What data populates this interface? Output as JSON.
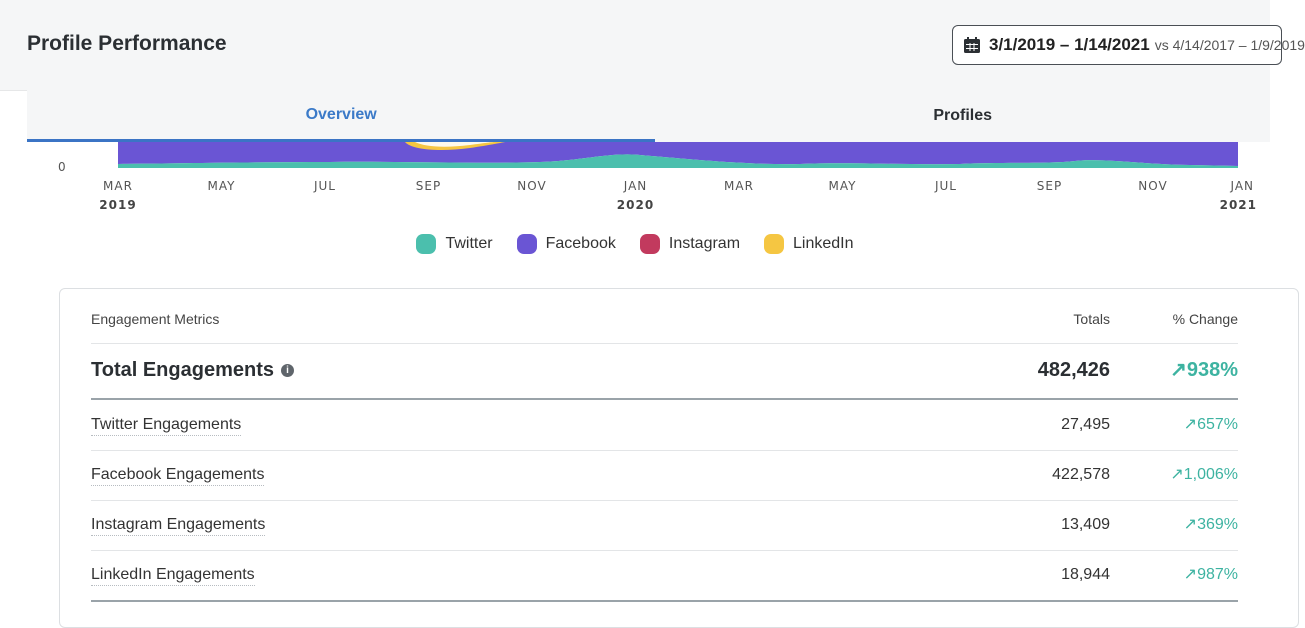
{
  "header": {
    "title": "Profile Performance",
    "date_range": "3/1/2019 – 1/14/2021",
    "compare_text": "vs 4/14/2017 – 1/9/2019",
    "calendar_icon": "calendar-icon"
  },
  "tabs": [
    {
      "label": "Overview",
      "active": true
    },
    {
      "label": "Profiles",
      "active": false
    }
  ],
  "chart_data": {
    "type": "area",
    "y_ticks": [
      "0"
    ],
    "x_ticks": [
      {
        "month": "MAR",
        "year": "2019"
      },
      {
        "month": "MAY",
        "year": ""
      },
      {
        "month": "JUL",
        "year": ""
      },
      {
        "month": "SEP",
        "year": ""
      },
      {
        "month": "NOV",
        "year": ""
      },
      {
        "month": "JAN",
        "year": "2020"
      },
      {
        "month": "MAR",
        "year": ""
      },
      {
        "month": "MAY",
        "year": ""
      },
      {
        "month": "JUL",
        "year": ""
      },
      {
        "month": "SEP",
        "year": ""
      },
      {
        "month": "NOV",
        "year": ""
      },
      {
        "month": "JAN",
        "year": "2021"
      }
    ],
    "legend": [
      {
        "name": "Twitter",
        "color": "#4bbfad"
      },
      {
        "name": "Facebook",
        "color": "#6a55d4"
      },
      {
        "name": "Instagram",
        "color": "#c23a5e"
      },
      {
        "name": "LinkedIn",
        "color": "#f5c642"
      }
    ],
    "stacked": true
  },
  "metrics": {
    "header": {
      "label": "Engagement Metrics",
      "totals": "Totals",
      "change": "% Change"
    },
    "total": {
      "label": "Total Engagements",
      "value": "482,426",
      "change": "938%"
    },
    "rows": [
      {
        "label": "Twitter Engagements",
        "value": "27,495",
        "change": "657%"
      },
      {
        "label": "Facebook Engagements",
        "value": "422,578",
        "change": "1,006%"
      },
      {
        "label": "Instagram Engagements",
        "value": "13,409",
        "change": "369%"
      },
      {
        "label": "LinkedIn Engagements",
        "value": "18,944",
        "change": "987%"
      }
    ],
    "change_arrow": "↗",
    "info_icon": "info-icon"
  }
}
